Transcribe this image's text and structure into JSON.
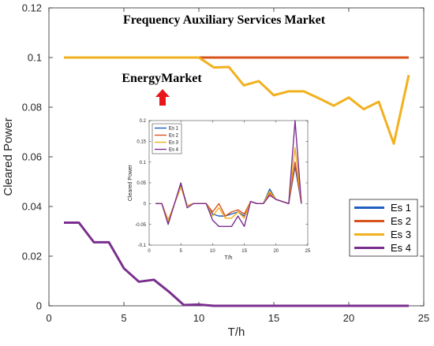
{
  "colors": {
    "Es 1": "#1f5fbf",
    "Es 2": "#d9531e",
    "Es 3": "#f2b01e",
    "Es 4": "#7a2f8f",
    "arrow": "#e8161b"
  },
  "annotations": {
    "top_text": "Frequency Auxiliary Services Market",
    "mid_text": "EnergyMarket"
  },
  "chart_data": [
    {
      "type": "line",
      "ylabel": "Cleared Power",
      "xlabel": "T/h",
      "xlim": [
        0,
        25
      ],
      "ylim": [
        0,
        0.12
      ],
      "xticks": [
        0,
        5,
        10,
        15,
        20,
        25
      ],
      "yticks": [
        0,
        0.02,
        0.04,
        0.06,
        0.08,
        0.1,
        0.12
      ],
      "x": [
        1,
        2,
        3,
        4,
        5,
        6,
        7,
        8,
        9,
        10,
        11,
        12,
        13,
        14,
        15,
        16,
        17,
        18,
        19,
        20,
        21,
        22,
        23,
        24
      ],
      "legend_position": "bottom-right",
      "series": [
        {
          "name": "Es 1",
          "values": [
            0.1,
            0.1,
            0.1,
            0.1,
            0.1,
            0.1,
            0.1,
            0.1,
            0.1,
            0.1,
            0.1,
            0.1,
            0.1,
            0.1,
            0.1,
            0.1,
            0.1,
            0.1,
            0.1,
            0.1,
            0.1,
            0.1,
            0.1,
            0.1
          ]
        },
        {
          "name": "Es 2",
          "values": [
            0.1,
            0.1,
            0.1,
            0.1,
            0.1,
            0.1,
            0.1,
            0.1,
            0.1,
            0.1,
            0.1,
            0.1,
            0.1,
            0.1,
            0.1,
            0.1,
            0.1,
            0.1,
            0.1,
            0.1,
            0.1,
            0.1,
            0.1,
            0.1
          ]
        },
        {
          "name": "Es 3",
          "values": [
            0.1,
            0.1,
            0.1,
            0.1,
            0.1,
            0.1,
            0.1,
            0.1,
            0.1,
            0.1,
            0.096,
            0.0962,
            0.0888,
            0.0905,
            0.0848,
            0.0864,
            0.0864,
            0.0836,
            0.0806,
            0.0839,
            0.0792,
            0.0822,
            0.0653,
            0.0929
          ]
        },
        {
          "name": "Es 4",
          "values": [
            0.0335,
            0.0335,
            0.0256,
            0.0256,
            0.0151,
            0.0097,
            0.0105,
            0.0057,
            0.0003,
            0.0005,
            0,
            0,
            0,
            0,
            0,
            0,
            0,
            0,
            0,
            0,
            0,
            0,
            0,
            0
          ]
        }
      ]
    },
    {
      "type": "line",
      "ylabel": "Cleared Power",
      "xlabel": "T/h",
      "xlim": [
        0,
        25
      ],
      "ylim": [
        -0.1,
        0.2
      ],
      "xticks": [
        0,
        5,
        10,
        15,
        20,
        25
      ],
      "yticks": [
        -0.1,
        -0.05,
        0,
        0.05,
        0.1,
        0.15,
        0.2
      ],
      "x": [
        1,
        2,
        3,
        4,
        5,
        6,
        7,
        8,
        9,
        10,
        11,
        12,
        13,
        14,
        15,
        16,
        17,
        18,
        19,
        20,
        21,
        22,
        23,
        24
      ],
      "legend_position": "top-left",
      "series": [
        {
          "name": "Es 1",
          "values": [
            0,
            0,
            -0.045,
            0,
            0.045,
            -0.005,
            0,
            0,
            0,
            -0.025,
            -0.03,
            -0.03,
            -0.025,
            -0.02,
            -0.03,
            0.005,
            0,
            0,
            0.035,
            0.01,
            0.005,
            0,
            0.09,
            0
          ]
        },
        {
          "name": "Es 2",
          "values": [
            0,
            0,
            -0.04,
            0,
            0.04,
            -0.005,
            0,
            0,
            0,
            -0.02,
            0,
            -0.03,
            -0.02,
            -0.015,
            -0.025,
            0.005,
            0,
            0,
            0.025,
            0.01,
            0.005,
            0,
            0.1,
            0
          ]
        },
        {
          "name": "Es 3",
          "values": [
            0,
            0,
            -0.042,
            0,
            0.04,
            -0.005,
            0,
            0,
            0,
            -0.03,
            -0.01,
            -0.035,
            -0.035,
            -0.02,
            -0.035,
            0.005,
            0,
            0,
            0.03,
            0.01,
            0.005,
            0,
            0.135,
            0
          ]
        },
        {
          "name": "Es 4",
          "values": [
            0,
            0,
            -0.05,
            0,
            0.05,
            -0.01,
            0,
            0,
            0,
            -0.04,
            -0.055,
            -0.055,
            -0.055,
            -0.03,
            -0.055,
            0.005,
            0,
            0,
            0.02,
            0.01,
            0.005,
            0,
            0.2,
            0
          ]
        }
      ]
    }
  ]
}
